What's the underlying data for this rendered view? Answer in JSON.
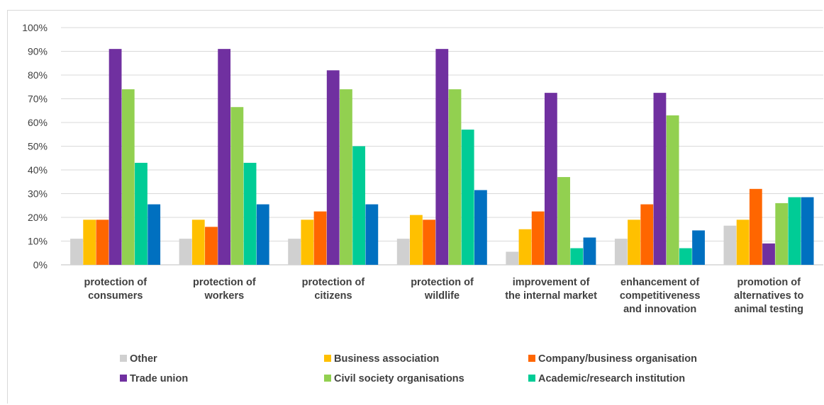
{
  "chart_data": {
    "type": "bar",
    "categories": [
      [
        "protection of",
        "consumers"
      ],
      [
        "protection of",
        "workers"
      ],
      [
        "protection of",
        "citizens"
      ],
      [
        "protection of",
        "wildlife"
      ],
      [
        "improvement of",
        "the internal market"
      ],
      [
        "enhancement of",
        "competitiveness",
        "and innovation"
      ],
      [
        "promotion of",
        "alternatives to",
        "animal testing"
      ]
    ],
    "series": [
      {
        "name": "Other",
        "color": "#d0d0d0",
        "values": [
          11,
          11,
          11,
          11,
          5.5,
          11,
          16.5
        ]
      },
      {
        "name": "Business association",
        "color": "#ffc000",
        "values": [
          19,
          19,
          19,
          21,
          15,
          19,
          19
        ]
      },
      {
        "name": "Company/business organisation",
        "color": "#ff6600",
        "values": [
          19,
          16,
          22.5,
          19,
          22.5,
          25.5,
          32
        ]
      },
      {
        "name": "Trade union",
        "color": "#7030a0",
        "values": [
          91,
          91,
          82,
          91,
          72.5,
          72.5,
          9
        ]
      },
      {
        "name": "Civil society organisations",
        "color": "#92d050",
        "values": [
          74,
          66.5,
          74,
          74,
          37,
          63,
          26
        ]
      },
      {
        "name": "Academic/research institution",
        "color": "#00cc96",
        "values": [
          43,
          43,
          50,
          57,
          7,
          7,
          28.5
        ]
      },
      {
        "name": "",
        "color": "#0070c0",
        "values": [
          25.5,
          25.5,
          25.5,
          31.5,
          11.5,
          14.5,
          28.5
        ]
      }
    ],
    "yticks": [
      "0%",
      "10%",
      "20%",
      "30%",
      "40%",
      "50%",
      "60%",
      "70%",
      "80%",
      "90%",
      "100%"
    ],
    "ylim": [
      0,
      100
    ],
    "grid": true,
    "legend": "bottom"
  }
}
